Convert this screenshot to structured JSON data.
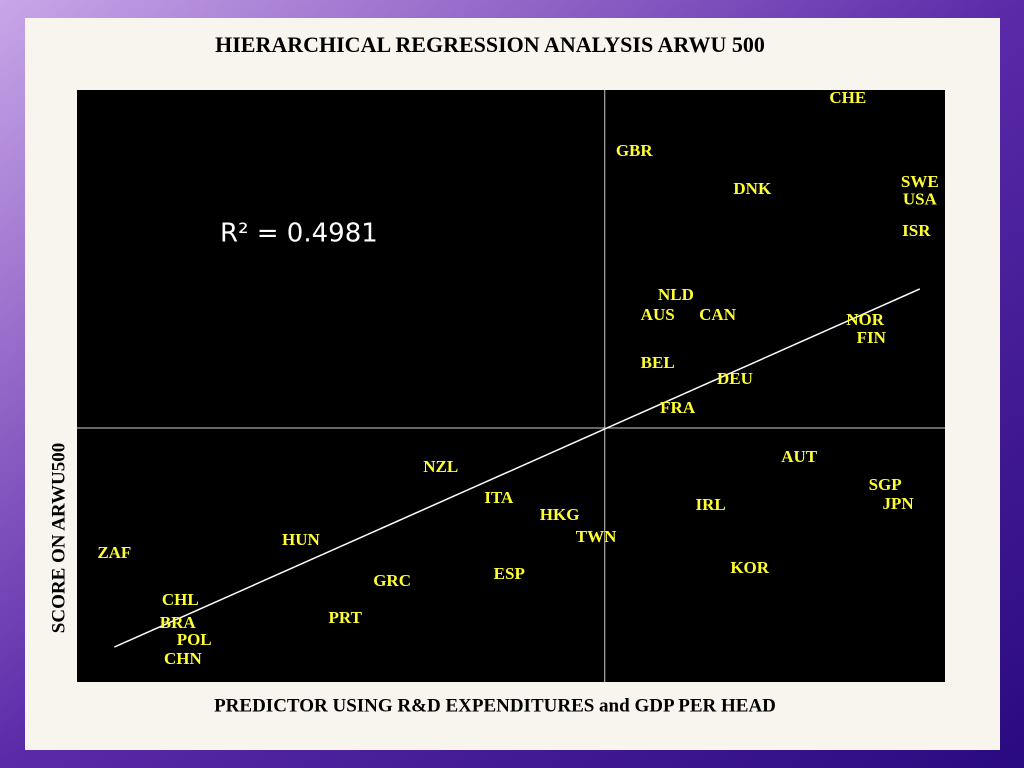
{
  "chart_data": {
    "type": "scatter",
    "title": "HIERARCHICAL REGRESSION ANALYSIS ARWU 500",
    "xlabel": "PREDICTOR USING R&D EXPENDITURES  and GDP PER HEAD",
    "ylabel": "SCORE ON ARWU500",
    "annotation": "R² = 0.4981",
    "xlim": [
      0,
      100
    ],
    "ylim": [
      0,
      100
    ],
    "color": "#ffff33",
    "labels": [
      "CHE",
      "GBR",
      "DNK",
      "SWE",
      "USA",
      "ISR",
      "NLD",
      "AUS",
      "CAN",
      "NOR",
      "FIN",
      "BEL",
      "DEU",
      "FRA",
      "AUT",
      "SGP",
      "JPN",
      "IRL",
      "NZL",
      "ITA",
      "HKG",
      "TWN",
      "HUN",
      "ZAF",
      "KOR",
      "ESP",
      "GRC",
      "CHL",
      "PRT",
      "BRA",
      "POL",
      "CHN"
    ],
    "x": [
      88.8,
      64.2,
      77.8,
      97.1,
      97.1,
      96.7,
      69.0,
      66.9,
      73.8,
      90.8,
      91.5,
      66.9,
      75.8,
      69.2,
      83.2,
      93.1,
      94.6,
      73.0,
      41.9,
      48.6,
      55.6,
      59.8,
      25.8,
      4.3,
      77.5,
      49.8,
      36.3,
      11.9,
      30.9,
      11.6,
      13.5,
      12.2
    ],
    "values": [
      98.5,
      89.5,
      83.1,
      84.3,
      81.3,
      76.0,
      65.2,
      61.8,
      61.8,
      61.0,
      57.9,
      53.7,
      51.0,
      46.1,
      37.8,
      33.1,
      29.9,
      29.7,
      36.1,
      30.9,
      28.0,
      24.3,
      23.8,
      21.6,
      19.1,
      18.1,
      16.9,
      13.7,
      10.6,
      9.8,
      6.9,
      3.7
    ],
    "trendline": {
      "x": [
        4.3,
        97.1
      ],
      "y": [
        5.9,
        66.4
      ]
    },
    "reference_lines": {
      "x": 60.8,
      "y": 42.9
    }
  }
}
